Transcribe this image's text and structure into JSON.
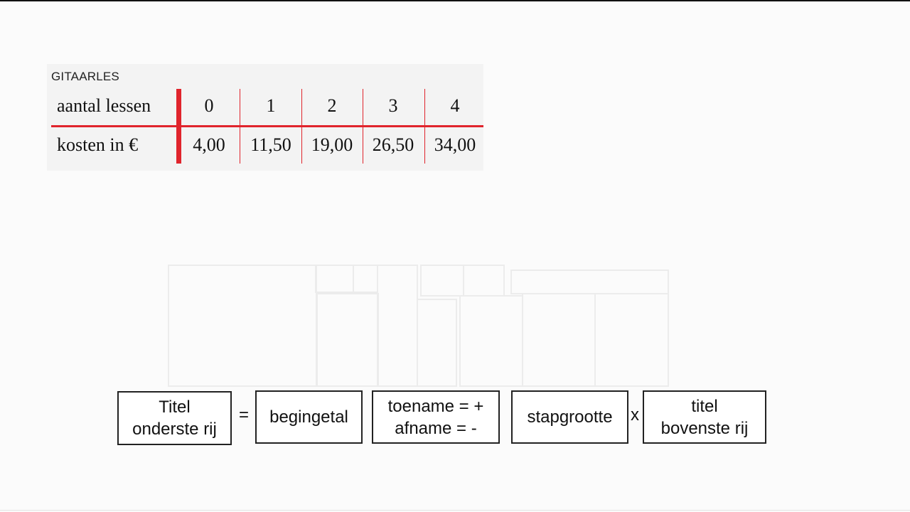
{
  "table": {
    "title": "GITAARLES",
    "row1": {
      "label": "aantal lessen",
      "values": [
        "0",
        "1",
        "2",
        "3",
        "4"
      ]
    },
    "row2": {
      "label": "kosten in €",
      "values": [
        "4,00",
        "11,50",
        "19,00",
        "26,50",
        "34,00"
      ]
    },
    "accent_color": "#e0242c"
  },
  "formula": {
    "titel_onderste_rij": [
      "Titel",
      "onderste rij"
    ],
    "equals": "=",
    "begingetal": "begingetal",
    "toe_afname": [
      "toename = +",
      "afname = -"
    ],
    "stapgrootte": "stapgrootte",
    "times": "x",
    "titel_bovenste_rij": [
      "titel",
      "bovenste rij"
    ]
  }
}
